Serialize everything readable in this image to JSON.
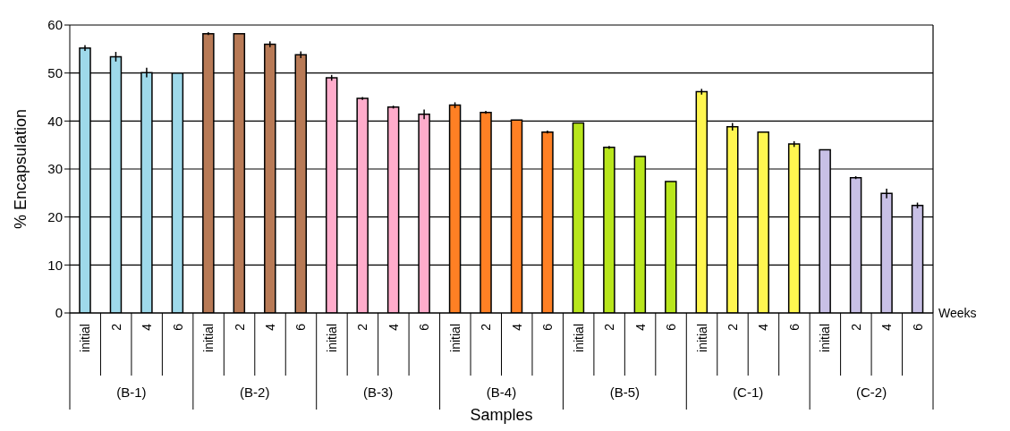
{
  "chart_data": {
    "type": "bar",
    "xlabel": "Samples",
    "ylabel": "% Encapsulation",
    "annotations": [
      "Weeks",
      "(B-1)",
      "(B-2)",
      "(B-3)",
      "(B-4)",
      "(B-5)",
      "(C-1)",
      "(C-2)"
    ],
    "categories": [
      "initial",
      "2",
      "4",
      "6",
      "initial",
      "2",
      "4",
      "6",
      "initial",
      "2",
      "4",
      "6",
      "initial",
      "2",
      "4",
      "6",
      "initial",
      "2",
      "4",
      "6",
      "initial",
      "2",
      "4",
      "6",
      "initial",
      "2",
      "4",
      "6"
    ],
    "values": [
      55.2,
      53.4,
      50.1,
      50.0,
      58.2,
      58.2,
      56.0,
      53.8,
      49.0,
      44.7,
      42.9,
      41.4,
      43.3,
      41.8,
      40.2,
      37.7,
      39.6,
      34.5,
      32.6,
      27.4,
      46.1,
      38.8,
      37.7,
      35.2,
      34.0,
      28.2,
      24.9,
      22.4
    ],
    "errors": [
      0.6,
      1.0,
      1.0,
      null,
      0.3,
      null,
      0.6,
      0.7,
      0.6,
      0.3,
      0.3,
      1.0,
      0.6,
      0.3,
      null,
      0.3,
      null,
      0.3,
      null,
      null,
      0.6,
      0.8,
      null,
      0.6,
      null,
      0.3,
      1.0,
      0.6
    ],
    "colors": [
      "#9ed9ea",
      "#9ed9ea",
      "#9ed9ea",
      "#9ed9ea",
      "#b87a56",
      "#b87a56",
      "#b87a56",
      "#b87a56",
      "#ffaccb",
      "#ffaccb",
      "#ffaccb",
      "#ffaccb",
      "#ff8024",
      "#ff8024",
      "#ff8024",
      "#ff8024",
      "#b8e61c",
      "#b8e61c",
      "#b8e61c",
      "#b8e61c",
      "#fff650",
      "#fff650",
      "#fff650",
      "#fff650",
      "#c8c0e6",
      "#c8c0e6",
      "#c8c0e6",
      "#c8c0e6"
    ],
    "ylim": [
      0,
      60
    ],
    "yticks": [
      0,
      10,
      20,
      30,
      40,
      50,
      60
    ],
    "grid": "y",
    "legend": false
  }
}
